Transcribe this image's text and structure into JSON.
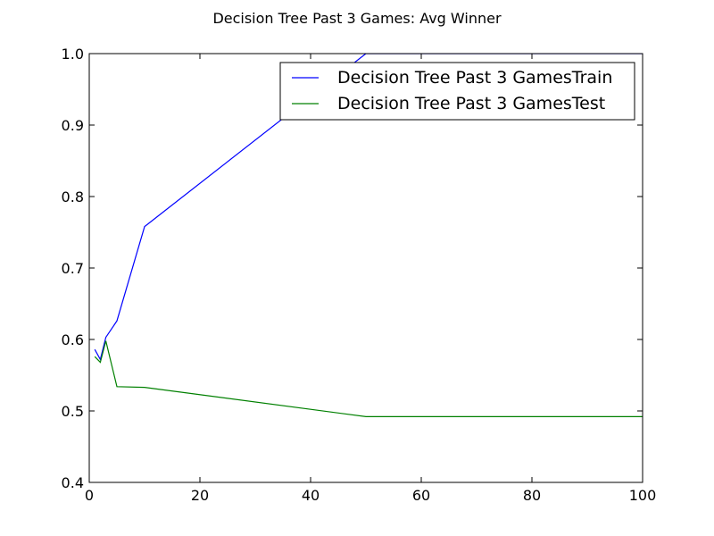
{
  "chart_data": {
    "type": "line",
    "title": "Decision Tree Past 3 Games: Avg Winner",
    "xlabel": "",
    "ylabel": "",
    "xlim": [
      0,
      100
    ],
    "ylim": [
      0.4,
      1.0
    ],
    "x_ticks": [
      0,
      20,
      40,
      60,
      80,
      100
    ],
    "y_ticks": [
      0.4,
      0.5,
      0.6,
      0.7,
      0.8,
      0.9,
      1.0
    ],
    "x_tick_labels": [
      "0",
      "20",
      "40",
      "60",
      "80",
      "100"
    ],
    "y_tick_labels": [
      "0.4",
      "0.5",
      "0.6",
      "0.7",
      "0.8",
      "0.9",
      "1.0"
    ],
    "grid": false,
    "legend_position": "top-right",
    "series": [
      {
        "name": "Decision Tree Past 3 GamesTrain",
        "color": "#0000ff",
        "x": [
          1,
          2,
          3,
          5,
          10,
          50,
          100
        ],
        "y": [
          0.586,
          0.572,
          0.603,
          0.626,
          0.758,
          1.0,
          1.0
        ]
      },
      {
        "name": "Decision Tree Past 3 GamesTest",
        "color": "#008000",
        "x": [
          1,
          2,
          3,
          5,
          10,
          50,
          100
        ],
        "y": [
          0.576,
          0.568,
          0.598,
          0.534,
          0.533,
          0.492,
          0.492
        ]
      }
    ]
  }
}
